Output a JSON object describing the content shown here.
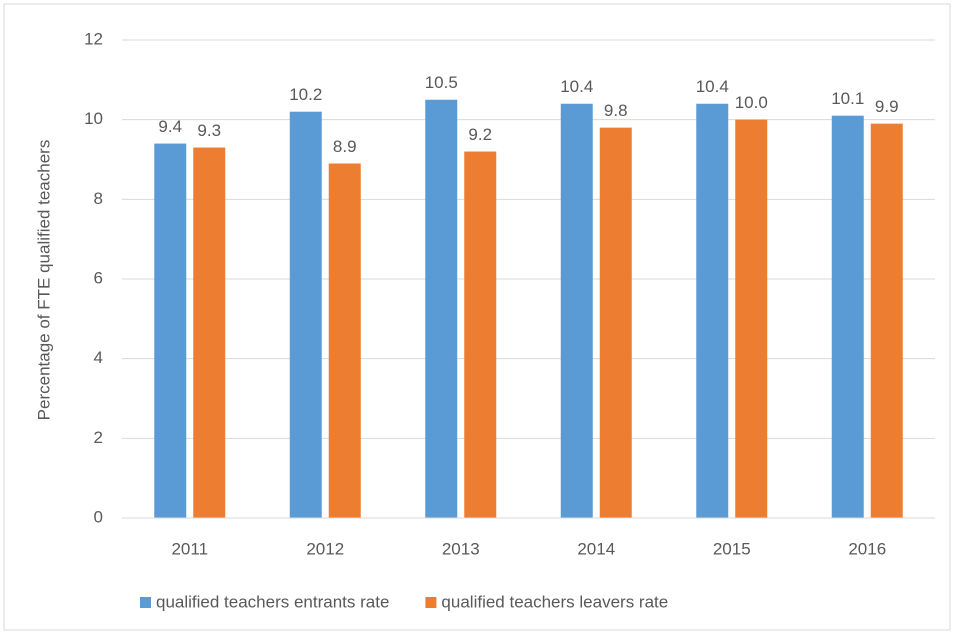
{
  "chart_data": {
    "type": "bar",
    "y_axis_label": "Percentage of FTE qualified teachers",
    "categories": [
      "2011",
      "2012",
      "2013",
      "2014",
      "2015",
      "2016"
    ],
    "series": [
      {
        "name": "qualified teachers entrants rate",
        "color": "#5b9bd5",
        "values": [
          9.4,
          10.2,
          10.5,
          10.4,
          10.4,
          10.1
        ],
        "value_labels": [
          "9.4",
          "10.2",
          "10.5",
          "10.4",
          "10.4",
          "10.1"
        ]
      },
      {
        "name": "qualified teachers leavers rate",
        "color": "#ed7d31",
        "values": [
          9.3,
          8.9,
          9.2,
          9.8,
          10.0,
          9.9
        ],
        "value_labels": [
          "9.3",
          "8.9",
          "9.2",
          "9.8",
          "10.0",
          "9.9"
        ]
      }
    ],
    "ylim": [
      0,
      12
    ],
    "yticks": [
      0,
      2,
      4,
      6,
      8,
      10,
      12
    ],
    "grid": true,
    "legend": "bottom"
  }
}
